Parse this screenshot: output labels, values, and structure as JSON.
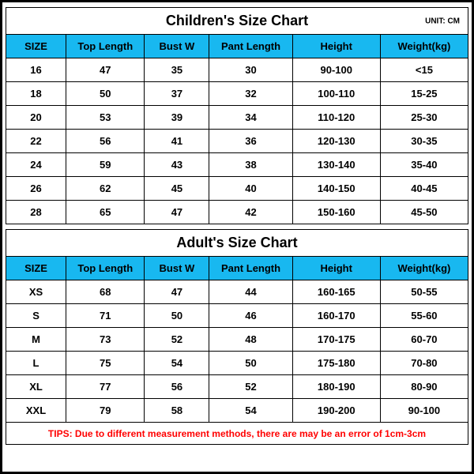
{
  "unit_label": "UNIT: CM",
  "header_bg_color": "#18b8f0",
  "tips_color": "#ff0000",
  "tips_bg_color": "#ffffff",
  "tips_text": "TIPS: Due to different measurement methods, there are may be an error of 1cm-3cm",
  "children": {
    "title": "Children's Size Chart",
    "columns": [
      "SIZE",
      "Top Length",
      "Bust W",
      "Pant Length",
      "Height",
      "Weight(kg)"
    ],
    "rows": [
      [
        "16",
        "47",
        "35",
        "30",
        "90-100",
        "<15"
      ],
      [
        "18",
        "50",
        "37",
        "32",
        "100-110",
        "15-25"
      ],
      [
        "20",
        "53",
        "39",
        "34",
        "110-120",
        "25-30"
      ],
      [
        "22",
        "56",
        "41",
        "36",
        "120-130",
        "30-35"
      ],
      [
        "24",
        "59",
        "43",
        "38",
        "130-140",
        "35-40"
      ],
      [
        "26",
        "62",
        "45",
        "40",
        "140-150",
        "40-45"
      ],
      [
        "28",
        "65",
        "47",
        "42",
        "150-160",
        "45-50"
      ]
    ]
  },
  "adult": {
    "title": "Adult's Size Chart",
    "columns": [
      "SIZE",
      "Top Length",
      "Bust W",
      "Pant Length",
      "Height",
      "Weight(kg)"
    ],
    "rows": [
      [
        "XS",
        "68",
        "47",
        "44",
        "160-165",
        "50-55"
      ],
      [
        "S",
        "71",
        "50",
        "46",
        "160-170",
        "55-60"
      ],
      [
        "M",
        "73",
        "52",
        "48",
        "170-175",
        "60-70"
      ],
      [
        "L",
        "75",
        "54",
        "50",
        "175-180",
        "70-80"
      ],
      [
        "XL",
        "77",
        "56",
        "52",
        "180-190",
        "80-90"
      ],
      [
        "XXL",
        "79",
        "58",
        "54",
        "190-200",
        "90-100"
      ]
    ]
  }
}
